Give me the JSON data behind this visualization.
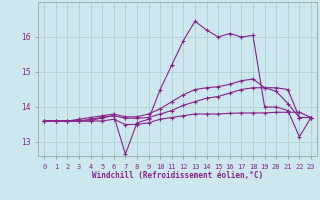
{
  "xlabel": "Windchill (Refroidissement éolien,°C)",
  "background_color": "#cce8ee",
  "grid_color": "#aacccc",
  "line_color": "#882288",
  "x_values": [
    0,
    1,
    2,
    3,
    4,
    5,
    6,
    7,
    8,
    9,
    10,
    11,
    12,
    13,
    14,
    15,
    16,
    17,
    18,
    19,
    20,
    21,
    22,
    23
  ],
  "series1": [
    13.6,
    13.6,
    13.6,
    13.6,
    13.6,
    13.7,
    13.75,
    12.65,
    13.55,
    13.65,
    14.5,
    15.2,
    15.9,
    16.45,
    16.2,
    16.0,
    16.1,
    16.0,
    16.05,
    14.0,
    14.0,
    13.9,
    13.15,
    13.7
  ],
  "series2": [
    13.6,
    13.6,
    13.6,
    13.6,
    13.6,
    13.6,
    13.65,
    13.5,
    13.5,
    13.55,
    13.65,
    13.7,
    13.75,
    13.8,
    13.8,
    13.8,
    13.82,
    13.83,
    13.83,
    13.83,
    13.85,
    13.85,
    13.85,
    13.7
  ],
  "series3": [
    13.6,
    13.6,
    13.6,
    13.6,
    13.65,
    13.7,
    13.75,
    13.68,
    13.68,
    13.7,
    13.8,
    13.9,
    14.05,
    14.15,
    14.25,
    14.3,
    14.4,
    14.5,
    14.55,
    14.55,
    14.55,
    14.5,
    13.7,
    13.7
  ],
  "series4": [
    13.6,
    13.6,
    13.6,
    13.65,
    13.7,
    13.75,
    13.8,
    13.72,
    13.72,
    13.8,
    13.95,
    14.15,
    14.35,
    14.5,
    14.55,
    14.58,
    14.65,
    14.75,
    14.8,
    14.55,
    14.45,
    14.1,
    13.7,
    13.7
  ],
  "ylim": [
    12.6,
    17.0
  ],
  "yticks": [
    13,
    14,
    15,
    16
  ],
  "xticks": [
    0,
    1,
    2,
    3,
    4,
    5,
    6,
    7,
    8,
    9,
    10,
    11,
    12,
    13,
    14,
    15,
    16,
    17,
    18,
    19,
    20,
    21,
    22,
    23
  ],
  "tick_fontsize": 5.0,
  "xlabel_fontsize": 5.5
}
